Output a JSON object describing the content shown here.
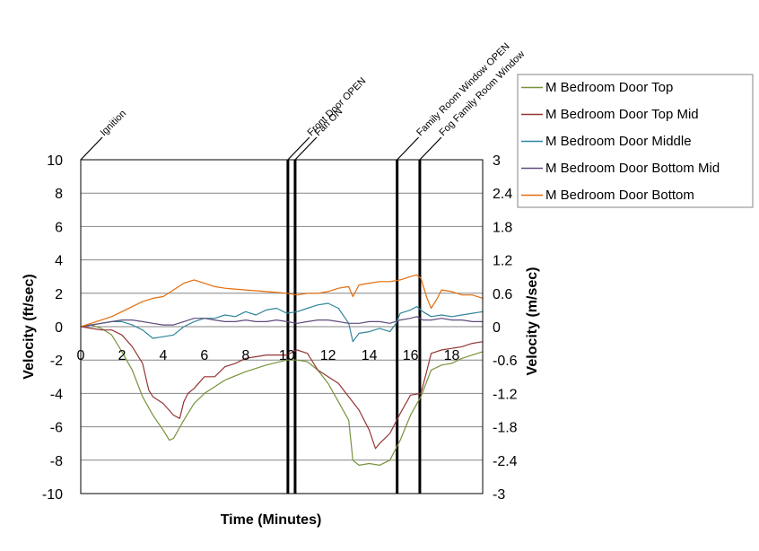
{
  "chart_data": {
    "type": "line",
    "xlabel": "Time (Minutes)",
    "ylabel": "Velocity (ft/sec)",
    "ylabel_right": "Velocity (m/sec)",
    "xlim": [
      0,
      19.5
    ],
    "ylim": [
      -10,
      10
    ],
    "ylim_right": [
      -3,
      3
    ],
    "x_ticks": [
      "0",
      "2",
      "4",
      "6",
      "8",
      "10",
      "12",
      "14",
      "16",
      "18"
    ],
    "y_ticks": [
      "10",
      "8",
      "6",
      "4",
      "2",
      "0",
      "-2",
      "-4",
      "-6",
      "-8",
      "-10"
    ],
    "y_ticks_right": [
      "3",
      "2.4",
      "1.8",
      "1.2",
      "0.6",
      "0",
      "-0.6",
      "-1.2",
      "-1.8",
      "-2.4",
      "-3"
    ],
    "grid": true,
    "legend_position": "top-right",
    "events": [
      {
        "label": "Ignition",
        "x": 0
      },
      {
        "label": "Front Door OPEN",
        "x": 10.05
      },
      {
        "label": "Fan ON",
        "x": 10.4
      },
      {
        "label": "Family Room Window OPEN",
        "x": 15.35
      },
      {
        "label": "Fog Family Room Window",
        "x": 16.45
      }
    ],
    "series": [
      {
        "name": "M Bedroom Door Top",
        "color": "#77933c",
        "points": [
          [
            0,
            0
          ],
          [
            0.5,
            0.1
          ],
          [
            1,
            -0.1
          ],
          [
            1.5,
            -0.5
          ],
          [
            2,
            -1.5
          ],
          [
            2.5,
            -2.6
          ],
          [
            3,
            -4.2
          ],
          [
            3.5,
            -5.3
          ],
          [
            4,
            -6.2
          ],
          [
            4.3,
            -6.8
          ],
          [
            4.5,
            -6.7
          ],
          [
            5,
            -5.6
          ],
          [
            5.5,
            -4.6
          ],
          [
            6,
            -4.0
          ],
          [
            7,
            -3.2
          ],
          [
            8,
            -2.7
          ],
          [
            9,
            -2.3
          ],
          [
            10,
            -2.0
          ],
          [
            10.5,
            -2.0
          ],
          [
            11,
            -2.1
          ],
          [
            11.5,
            -2.6
          ],
          [
            12,
            -3.4
          ],
          [
            12.5,
            -4.5
          ],
          [
            13,
            -5.6
          ],
          [
            13.2,
            -8.0
          ],
          [
            13.5,
            -8.3
          ],
          [
            14,
            -8.2
          ],
          [
            14.5,
            -8.3
          ],
          [
            15,
            -8.0
          ],
          [
            15.5,
            -6.8
          ],
          [
            16,
            -5.3
          ],
          [
            16.5,
            -4.2
          ],
          [
            17,
            -2.6
          ],
          [
            17.5,
            -2.3
          ],
          [
            18,
            -2.2
          ],
          [
            18.5,
            -1.9
          ],
          [
            19,
            -1.7
          ],
          [
            19.5,
            -1.5
          ]
        ]
      },
      {
        "name": "M Bedroom Door Top Mid",
        "color": "#943634",
        "points": [
          [
            0,
            0
          ],
          [
            0.5,
            -0.1
          ],
          [
            1,
            -0.2
          ],
          [
            1.5,
            -0.2
          ],
          [
            2,
            -0.5
          ],
          [
            2.5,
            -1.2
          ],
          [
            3,
            -2.2
          ],
          [
            3.3,
            -3.8
          ],
          [
            3.5,
            -4.2
          ],
          [
            4,
            -4.6
          ],
          [
            4.5,
            -5.3
          ],
          [
            4.8,
            -5.5
          ],
          [
            5,
            -4.5
          ],
          [
            5.2,
            -4.0
          ],
          [
            5.5,
            -3.7
          ],
          [
            6,
            -3.0
          ],
          [
            6.5,
            -3.0
          ],
          [
            7,
            -2.4
          ],
          [
            7.5,
            -2.2
          ],
          [
            8,
            -1.9
          ],
          [
            8.5,
            -1.8
          ],
          [
            9,
            -1.7
          ],
          [
            10,
            -1.7
          ],
          [
            10.5,
            -1.4
          ],
          [
            11,
            -1.6
          ],
          [
            11.5,
            -2.6
          ],
          [
            12,
            -3.0
          ],
          [
            12.5,
            -3.4
          ],
          [
            13,
            -4.2
          ],
          [
            13.5,
            -5.0
          ],
          [
            14,
            -6.2
          ],
          [
            14.3,
            -7.3
          ],
          [
            14.5,
            -7.0
          ],
          [
            15,
            -6.4
          ],
          [
            15.5,
            -5.2
          ],
          [
            16,
            -4.1
          ],
          [
            16.5,
            -4.0
          ],
          [
            16.8,
            -2.6
          ],
          [
            17,
            -1.6
          ],
          [
            17.5,
            -1.4
          ],
          [
            18,
            -1.3
          ],
          [
            18.5,
            -1.2
          ],
          [
            19,
            -1.0
          ],
          [
            19.5,
            -0.9
          ]
        ]
      },
      {
        "name": "M Bedroom Door Middle",
        "color": "#31859c",
        "points": [
          [
            0,
            0
          ],
          [
            0.5,
            0.1
          ],
          [
            1,
            0.2
          ],
          [
            1.5,
            0.3
          ],
          [
            2,
            0.3
          ],
          [
            2.5,
            0.1
          ],
          [
            3,
            -0.2
          ],
          [
            3.5,
            -0.7
          ],
          [
            4,
            -0.6
          ],
          [
            4.5,
            -0.5
          ],
          [
            5,
            0
          ],
          [
            5.5,
            0.3
          ],
          [
            6,
            0.5
          ],
          [
            6.5,
            0.5
          ],
          [
            7,
            0.7
          ],
          [
            7.5,
            0.6
          ],
          [
            8,
            0.9
          ],
          [
            8.5,
            0.7
          ],
          [
            9,
            1.0
          ],
          [
            9.5,
            1.1
          ],
          [
            10,
            0.8
          ],
          [
            10.5,
            0.9
          ],
          [
            11,
            1.1
          ],
          [
            11.5,
            1.3
          ],
          [
            12,
            1.4
          ],
          [
            12.5,
            1.1
          ],
          [
            13,
            0.2
          ],
          [
            13.2,
            -0.9
          ],
          [
            13.5,
            -0.4
          ],
          [
            14,
            -0.3
          ],
          [
            14.5,
            -0.1
          ],
          [
            15,
            -0.3
          ],
          [
            15.3,
            0.2
          ],
          [
            15.5,
            0.8
          ],
          [
            16,
            1.0
          ],
          [
            16.3,
            1.2
          ],
          [
            16.6,
            0.9
          ],
          [
            17,
            0.6
          ],
          [
            17.5,
            0.7
          ],
          [
            18,
            0.6
          ],
          [
            18.5,
            0.7
          ],
          [
            19,
            0.8
          ],
          [
            19.5,
            0.9
          ]
        ]
      },
      {
        "name": "M Bedroom Door Bottom Mid",
        "color": "#604a7b",
        "points": [
          [
            0,
            0
          ],
          [
            0.5,
            0.1
          ],
          [
            1,
            0.2
          ],
          [
            1.5,
            0.3
          ],
          [
            2,
            0.4
          ],
          [
            2.5,
            0.4
          ],
          [
            3,
            0.3
          ],
          [
            3.5,
            0.2
          ],
          [
            4,
            0.1
          ],
          [
            4.5,
            0.1
          ],
          [
            5,
            0.3
          ],
          [
            5.5,
            0.5
          ],
          [
            6,
            0.5
          ],
          [
            6.5,
            0.4
          ],
          [
            7,
            0.3
          ],
          [
            7.5,
            0.3
          ],
          [
            8,
            0.4
          ],
          [
            8.5,
            0.3
          ],
          [
            9,
            0.3
          ],
          [
            9.5,
            0.4
          ],
          [
            10,
            0.3
          ],
          [
            10.5,
            0.2
          ],
          [
            11,
            0.3
          ],
          [
            11.5,
            0.4
          ],
          [
            12,
            0.4
          ],
          [
            12.5,
            0.3
          ],
          [
            13,
            0.2
          ],
          [
            13.5,
            0.2
          ],
          [
            14,
            0.3
          ],
          [
            14.5,
            0.3
          ],
          [
            15,
            0.2
          ],
          [
            15.5,
            0.4
          ],
          [
            16,
            0.5
          ],
          [
            16.3,
            0.6
          ],
          [
            16.6,
            0.4
          ],
          [
            17,
            0.4
          ],
          [
            17.5,
            0.5
          ],
          [
            18,
            0.4
          ],
          [
            18.5,
            0.4
          ],
          [
            19,
            0.3
          ],
          [
            19.5,
            0.3
          ]
        ]
      },
      {
        "name": "M Bedroom Door Bottom",
        "color": "#e46c0a",
        "points": [
          [
            0,
            0
          ],
          [
            0.5,
            0.2
          ],
          [
            1,
            0.4
          ],
          [
            1.5,
            0.6
          ],
          [
            2,
            0.9
          ],
          [
            2.5,
            1.2
          ],
          [
            3,
            1.5
          ],
          [
            3.5,
            1.7
          ],
          [
            4,
            1.8
          ],
          [
            4.5,
            2.2
          ],
          [
            5,
            2.6
          ],
          [
            5.5,
            2.8
          ],
          [
            6,
            2.6
          ],
          [
            6.5,
            2.4
          ],
          [
            7,
            2.3
          ],
          [
            8,
            2.2
          ],
          [
            9,
            2.1
          ],
          [
            10,
            2.0
          ],
          [
            10.5,
            1.9
          ],
          [
            11,
            2.0
          ],
          [
            11.5,
            2.0
          ],
          [
            12,
            2.1
          ],
          [
            12.5,
            2.3
          ],
          [
            13,
            2.4
          ],
          [
            13.2,
            1.8
          ],
          [
            13.5,
            2.5
          ],
          [
            14,
            2.6
          ],
          [
            14.5,
            2.7
          ],
          [
            15,
            2.7
          ],
          [
            15.5,
            2.8
          ],
          [
            16,
            3.0
          ],
          [
            16.3,
            3.1
          ],
          [
            16.5,
            2.9
          ],
          [
            16.8,
            1.7
          ],
          [
            17,
            1.1
          ],
          [
            17.3,
            1.7
          ],
          [
            17.5,
            2.2
          ],
          [
            18,
            2.1
          ],
          [
            18.5,
            1.9
          ],
          [
            19,
            1.9
          ],
          [
            19.5,
            1.7
          ]
        ]
      }
    ]
  }
}
